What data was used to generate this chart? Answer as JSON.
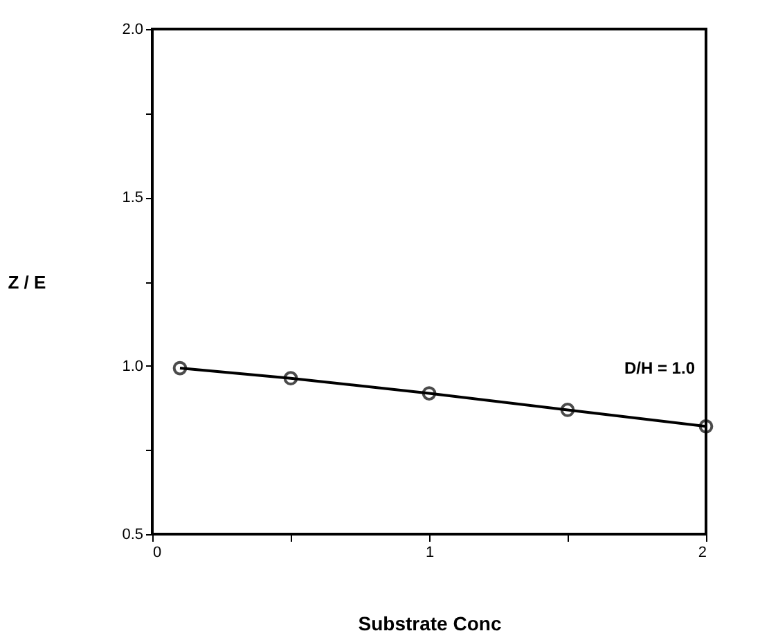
{
  "chart_data": {
    "type": "line",
    "xlabel": "Substrate  Conc",
    "ylabel": "Z / E",
    "x": [
      0.1,
      0.5,
      1.0,
      1.5,
      2.0
    ],
    "series": [
      {
        "color": "#000000",
        "values": [
          0.993,
          0.963,
          0.918,
          0.869,
          0.82
        ]
      }
    ],
    "xlim": [
      0,
      2
    ],
    "ylim": [
      0.5,
      2.0
    ],
    "xticks": [
      0,
      {
        "value": 0.5,
        "label": null
      },
      1,
      {
        "value": 1.5,
        "label": null
      },
      2
    ],
    "yticks": [
      {
        "value": 0.5,
        "label": "0.5"
      },
      {
        "value": 0.75,
        "label": null
      },
      {
        "value": 1.0,
        "label": "1.0"
      },
      {
        "value": 1.25,
        "label": null
      },
      {
        "value": 1.5,
        "label": "1.5"
      },
      {
        "value": 1.75,
        "label": null
      },
      {
        "value": 2.0,
        "label": "2.0"
      }
    ],
    "annotations": [
      "D/H  =  1.0"
    ],
    "marker": "circle",
    "line_style": "solid",
    "grid": false
  }
}
